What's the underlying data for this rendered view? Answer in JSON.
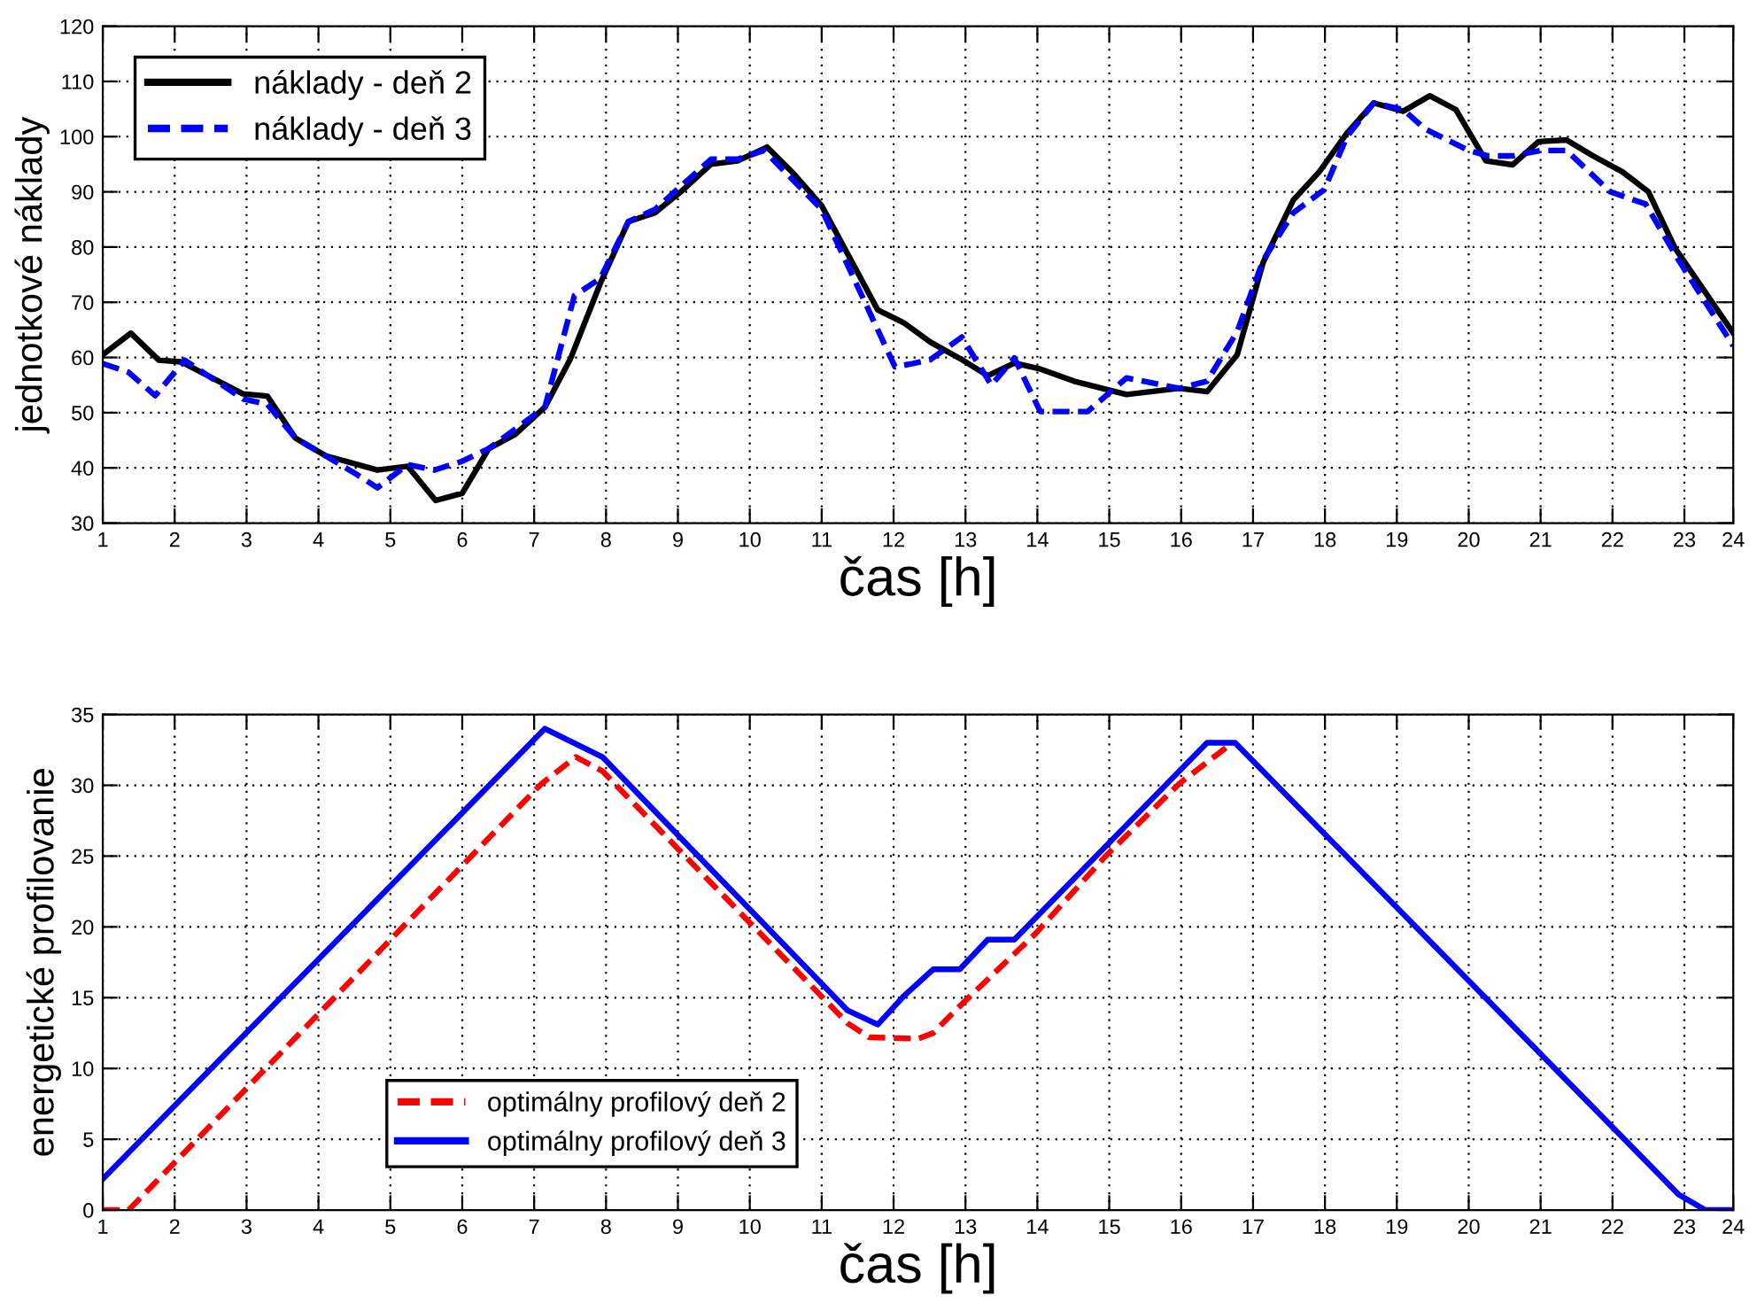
{
  "chart_data": [
    {
      "type": "line",
      "xlabel": "čas [h]",
      "ylabel": "jednotkové náklady",
      "xlim": [
        1,
        23.68
      ],
      "ylim": [
        30,
        120
      ],
      "xticks": [
        1,
        2,
        3,
        4,
        5,
        6,
        7,
        8,
        9,
        10,
        11,
        12,
        13,
        14,
        15,
        16,
        17,
        18,
        19,
        20,
        21,
        22,
        23,
        {
          "value": 23.68,
          "label": "24"
        }
      ],
      "yticks": [
        30,
        40,
        50,
        60,
        70,
        80,
        90,
        100,
        110,
        120
      ],
      "grid": true,
      "legend": "top left",
      "series": [
        {
          "name": "náklady - deň 2",
          "color": "#000000",
          "line_style": "solid",
          "x": [
            1.0,
            1.39,
            1.78,
            2.09,
            2.95,
            3.29,
            3.68,
            4.1,
            4.82,
            5.24,
            5.63,
            6.0,
            6.37,
            6.73,
            7.15,
            7.51,
            7.92,
            8.31,
            8.68,
            9.04,
            9.46,
            9.83,
            10.24,
            10.61,
            11.0,
            11.78,
            12.14,
            12.51,
            12.95,
            13.31,
            13.68,
            14.02,
            14.51,
            15.24,
            15.97,
            16.36,
            16.78,
            17.14,
            17.56,
            17.92,
            18.31,
            18.68,
            19.09,
            19.46,
            19.82,
            20.24,
            20.61,
            20.97,
            21.36,
            21.73,
            22.14,
            22.5,
            22.87,
            23.68
          ],
          "values": [
            60.5,
            64.4,
            59.5,
            59.2,
            53.4,
            53,
            45.4,
            42.2,
            39.6,
            40.3,
            34.1,
            35.4,
            43.5,
            46,
            51,
            59.9,
            73.4,
            84.6,
            86.2,
            90,
            95,
            95.6,
            98.1,
            93.3,
            87.5,
            68.6,
            66.3,
            62.8,
            59.6,
            56.7,
            59,
            58,
            55.7,
            53.3,
            54.4,
            53.8,
            60.5,
            77.2,
            88.5,
            93.6,
            100.7,
            106.1,
            104.6,
            107.4,
            104.9,
            95.6,
            94.9,
            99.1,
            99.4,
            96.5,
            93.6,
            90,
            79.8,
            64.4
          ]
        },
        {
          "name": "náklady - deň 3",
          "color": "#0000ff",
          "line_style": "dashed",
          "x": [
            1.0,
            1.36,
            1.73,
            2.14,
            2.95,
            3.29,
            3.68,
            4.51,
            4.82,
            5.24,
            5.61,
            6.0,
            6.37,
            7.15,
            7.56,
            7.92,
            8.31,
            8.68,
            9.46,
            9.83,
            10.2,
            11.0,
            12.02,
            12.27,
            12.51,
            12.95,
            13.36,
            13.68,
            14.04,
            14.7,
            15.24,
            15.97,
            16.36,
            16.78,
            17.14,
            17.56,
            17.99,
            18.31,
            18.68,
            19.09,
            19.39,
            20.0,
            20.27,
            20.61,
            21.0,
            21.36,
            21.97,
            22.46,
            22.92,
            23.68
          ],
          "values": [
            58.9,
            57.3,
            53.1,
            59.5,
            52.5,
            51.5,
            45.4,
            39,
            36.4,
            40.6,
            39.6,
            41.2,
            43.5,
            51,
            71.2,
            74.3,
            84.6,
            86.8,
            95.9,
            95.9,
            97.5,
            86.8,
            58.3,
            58.9,
            59.6,
            63.7,
            55,
            59.9,
            50.2,
            50.2,
            56.3,
            54.4,
            55.7,
            64.7,
            77.6,
            86.2,
            90.4,
            100.1,
            106.1,
            104.9,
            101.4,
            97.5,
            96.5,
            96.5,
            97.5,
            97.5,
            90,
            87.8,
            77.6,
            62.1
          ]
        }
      ]
    },
    {
      "type": "line",
      "xlabel": "čas [h]",
      "ylabel": "energetické profilovanie",
      "xlim": [
        1,
        23.68
      ],
      "ylim": [
        0,
        35
      ],
      "xticks": [
        1,
        2,
        3,
        4,
        5,
        6,
        7,
        8,
        9,
        10,
        11,
        12,
        13,
        14,
        15,
        16,
        17,
        18,
        19,
        20,
        21,
        22,
        23,
        {
          "value": 23.68,
          "label": "24"
        }
      ],
      "yticks": [
        0,
        5,
        10,
        15,
        20,
        25,
        30,
        35
      ],
      "grid": true,
      "legend": "bottom",
      "series": [
        {
          "name": "optimálny profilový deň 2",
          "color": "#ff0000",
          "line_style": "dashed",
          "x": [
            1.0,
            1.36,
            7.1,
            7.58,
            7.95,
            11.36,
            11.66,
            12.34,
            12.55,
            12.92,
            13.97,
            14.95,
            15.97,
            16.66
          ],
          "values": [
            0,
            0,
            30.1,
            32,
            31,
            13.2,
            12.2,
            12.1,
            12.5,
            14.4,
            19.5,
            25,
            30.1,
            32.8
          ]
        },
        {
          "name": "optimálny profilový deň 3",
          "color": "#0000ff",
          "line_style": "solid",
          "x": [
            1.0,
            7.15,
            7.95,
            11.36,
            11.78,
            12.14,
            12.55,
            12.92,
            13.31,
            13.68,
            16.36,
            16.75,
            22.92,
            23.29,
            23.68
          ],
          "values": [
            2.2,
            34,
            32,
            14.1,
            13.1,
            15.1,
            17,
            17,
            19.1,
            19.1,
            33,
            33,
            1.1,
            0,
            0
          ]
        }
      ]
    }
  ]
}
